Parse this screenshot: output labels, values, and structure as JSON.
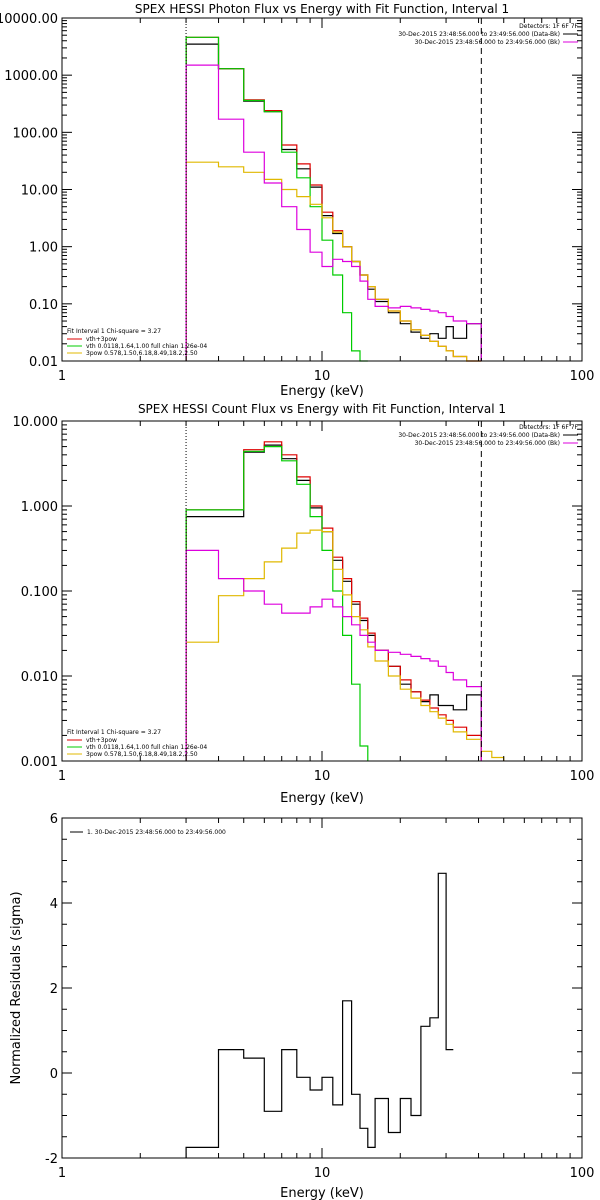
{
  "chart_data": [
    {
      "id": "photon",
      "type": "line",
      "title": "SPEX HESSI Photon Flux vs Energy with Fit Function, Interval 1",
      "xlabel": "Energy (keV)",
      "ylabel": "",
      "xscale": "log",
      "yscale": "log",
      "xlim": [
        1,
        100
      ],
      "ylim": [
        0.01,
        10000
      ],
      "xticks": [
        {
          "v": 1,
          "label": "1"
        },
        {
          "v": 10,
          "label": "10"
        },
        {
          "v": 100,
          "label": "100"
        }
      ],
      "yticks": [
        {
          "v": 0.01,
          "label": "0.01"
        },
        {
          "v": 0.1,
          "label": "0.10"
        },
        {
          "v": 1,
          "label": "1.00"
        },
        {
          "v": 10,
          "label": "10.00"
        },
        {
          "v": 100,
          "label": "100.00"
        },
        {
          "v": 1000,
          "label": "1000.00"
        },
        {
          "v": 10000,
          "label": "10000.00"
        }
      ],
      "vlines": [
        {
          "x": 3.0,
          "style": "dotted"
        },
        {
          "x": 41.0,
          "style": "dashed"
        }
      ],
      "legend_right": {
        "header": "Detectors: 1F 6F 7F",
        "entries": [
          {
            "label": "30-Dec-2015 23:48:56.000 to 23:49:56.000 (Data-Bk)",
            "color": "#000000"
          },
          {
            "label": "30-Dec-2015 23:48:56.000 to 23:49:56.000 (Bk)",
            "color": "#dd00dd"
          }
        ]
      },
      "legend_left": {
        "header": "Fit Interval 1   Chi-square = 3.27",
        "entries": [
          {
            "label": "vth+3pow",
            "color": "#dd0000"
          },
          {
            "label": "vth 0.0118,1.64,1.00  full chian 1.26e-04",
            "color": "#00cc00"
          },
          {
            "label": "3pow 0.578,1.50,6.18,8.49,18.2,2.50",
            "color": "#e0b800"
          }
        ]
      },
      "edges": [
        3.0,
        4.0,
        5.0,
        6.0,
        7.0,
        8.0,
        9.0,
        10.0,
        11.0,
        12.0,
        13.0,
        14.0,
        15.0,
        16.0,
        18.0,
        20.0,
        22.0,
        24.0,
        26.0,
        28.0,
        30.0,
        32.0,
        36.0,
        41.0
      ],
      "series": [
        {
          "color": "#000000",
          "values": [
            3500,
            1300,
            350,
            230,
            50,
            23,
            11,
            3.5,
            1.7,
            1.0,
            0.55,
            0.32,
            0.18,
            0.11,
            0.07,
            0.045,
            0.032,
            0.025,
            0.03,
            0.025,
            0.04,
            0.025,
            0.045
          ]
        },
        {
          "color": "#dd0000",
          "values": [
            4600,
            1300,
            370,
            240,
            60,
            28,
            12,
            4.0,
            1.9,
            1.0,
            0.55,
            0.32,
            0.2,
            0.12,
            0.075,
            0.05,
            0.035,
            0.028,
            0.022,
            0.018,
            0.015,
            0.012,
            0.01
          ]
        },
        {
          "color": "#00cc00",
          "values": [
            4600,
            1300,
            360,
            230,
            45,
            16,
            5.0,
            1.3,
            0.32,
            0.07,
            0.015,
            0.003
          ]
        },
        {
          "color": "#e0b800",
          "values": [
            30,
            25,
            20,
            15,
            10,
            7.5,
            5.5,
            3.2,
            1.8,
            1.0,
            0.55,
            0.32,
            0.2,
            0.12,
            0.075,
            0.05,
            0.035,
            0.028,
            0.022,
            0.018,
            0.015,
            0.012,
            0.01
          ]
        },
        {
          "color": "#dd00dd",
          "values": [
            1500,
            170,
            45,
            13,
            5.0,
            2.0,
            0.8,
            0.45,
            0.6,
            0.55,
            0.45,
            0.25,
            0.12,
            0.09,
            0.085,
            0.09,
            0.085,
            0.08,
            0.075,
            0.07,
            0.06,
            0.05,
            0.045
          ]
        }
      ]
    },
    {
      "id": "count",
      "type": "line",
      "title": "SPEX HESSI Count Flux vs Energy with Fit Function, Interval 1",
      "xlabel": "Energy (keV)",
      "ylabel": "",
      "xscale": "log",
      "yscale": "log",
      "xlim": [
        1,
        100
      ],
      "ylim": [
        0.001,
        10
      ],
      "xticks": [
        {
          "v": 1,
          "label": "1"
        },
        {
          "v": 10,
          "label": "10"
        },
        {
          "v": 100,
          "label": "100"
        }
      ],
      "yticks": [
        {
          "v": 0.001,
          "label": "0.001"
        },
        {
          "v": 0.01,
          "label": "0.010"
        },
        {
          "v": 0.1,
          "label": "0.100"
        },
        {
          "v": 1,
          "label": "1.000"
        },
        {
          "v": 10,
          "label": "10.000"
        }
      ],
      "vlines": [
        {
          "x": 3.0,
          "style": "dotted"
        },
        {
          "x": 41.0,
          "style": "dashed"
        }
      ],
      "legend_right": {
        "header": "Detectors: 1F 6F 7F",
        "entries": [
          {
            "label": "30-Dec-2015 23:48:56.000 to 23:49:56.000 (Data-Bk)",
            "color": "#000000"
          },
          {
            "label": "30-Dec-2015 23:48:56.000 to 23:49:56.000 (Bk)",
            "color": "#dd00dd"
          }
        ]
      },
      "legend_left": {
        "header": "Fit Interval 1   Chi-square = 3.27",
        "entries": [
          {
            "label": "vth+3pow",
            "color": "#dd0000"
          },
          {
            "label": "vth 0.0118,1.64,1.00  full chian 1.26e-04",
            "color": "#00cc00"
          },
          {
            "label": "3pow 0.578,1.50,6.18,8.49,18.2,2.50",
            "color": "#e0b800"
          }
        ]
      },
      "edges": [
        3.0,
        4.0,
        5.0,
        6.0,
        7.0,
        8.0,
        9.0,
        10.0,
        11.0,
        12.0,
        13.0,
        14.0,
        15.0,
        16.0,
        18.0,
        20.0,
        22.0,
        24.0,
        26.0,
        28.0,
        30.0,
        32.0,
        36.0,
        41.0,
        45.0,
        50.0
      ],
      "series": [
        {
          "color": "#000000",
          "values": [
            0.75,
            0.75,
            4.3,
            5.2,
            3.6,
            2.0,
            0.95,
            0.5,
            0.23,
            0.13,
            0.07,
            0.045,
            0.03,
            0.02,
            0.013,
            0.008,
            0.0065,
            0.005,
            0.006,
            0.0045,
            0.0045,
            0.004,
            0.006
          ]
        },
        {
          "color": "#dd0000",
          "values": [
            0.9,
            0.9,
            4.6,
            5.7,
            4.0,
            2.2,
            1.0,
            0.55,
            0.25,
            0.14,
            0.075,
            0.048,
            0.032,
            0.02,
            0.013,
            0.009,
            0.0065,
            0.0052,
            0.0042,
            0.0035,
            0.003,
            0.0025,
            0.002
          ]
        },
        {
          "color": "#00cc00",
          "values": [
            0.9,
            0.9,
            4.4,
            5.0,
            3.4,
            1.8,
            0.75,
            0.3,
            0.1,
            0.03,
            0.008,
            0.0015
          ]
        },
        {
          "color": "#e0b800",
          "values": [
            0.025,
            0.088,
            0.14,
            0.22,
            0.32,
            0.48,
            0.52,
            0.5,
            0.18,
            0.09,
            0.05,
            0.035,
            0.022,
            0.015,
            0.01,
            0.007,
            0.0055,
            0.0045,
            0.0038,
            0.0032,
            0.0027,
            0.0022,
            0.0018,
            0.0013,
            0.0011
          ]
        },
        {
          "color": "#dd00dd",
          "values": [
            0.3,
            0.14,
            0.1,
            0.07,
            0.055,
            0.055,
            0.065,
            0.08,
            0.065,
            0.05,
            0.04,
            0.03,
            0.025,
            0.02,
            0.019,
            0.018,
            0.017,
            0.016,
            0.015,
            0.013,
            0.011,
            0.009,
            0.0075
          ]
        }
      ]
    },
    {
      "id": "residuals",
      "type": "line",
      "title": "",
      "xlabel": "Energy (keV)",
      "ylabel": "Normalized Residuals (sigma)",
      "xscale": "log",
      "yscale": "linear",
      "xlim": [
        1,
        100
      ],
      "ylim": [
        -2,
        6
      ],
      "xticks": [
        {
          "v": 1,
          "label": "1"
        },
        {
          "v": 10,
          "label": "10"
        },
        {
          "v": 100,
          "label": "100"
        }
      ],
      "yticks": [
        {
          "v": -2,
          "label": "-2"
        },
        {
          "v": 0,
          "label": "0"
        },
        {
          "v": 2,
          "label": "2"
        },
        {
          "v": 4,
          "label": "4"
        },
        {
          "v": 6,
          "label": "6"
        }
      ],
      "legend": {
        "label": "1. 30-Dec-2015 23:48:56.000 to 23:49:56.000",
        "color": "#000000"
      },
      "edges": [
        3.0,
        4.0,
        5.0,
        6.0,
        7.0,
        8.0,
        9.0,
        10.0,
        11.0,
        12.0,
        13.0,
        14.0,
        15.0,
        16.0,
        18.0,
        20.0,
        22.0,
        24.0,
        26.0,
        28.0,
        30.0,
        32.0,
        36.0,
        41.0
      ],
      "series": [
        {
          "color": "#000000",
          "values": [
            -1.75,
            0.55,
            0.35,
            -0.9,
            0.55,
            -0.1,
            -0.4,
            -0.1,
            -0.75,
            1.7,
            -0.5,
            -1.3,
            -1.75,
            -0.6,
            -1.4,
            -0.6,
            -1.0,
            1.1,
            1.3,
            4.7,
            0.55
          ]
        }
      ]
    }
  ]
}
